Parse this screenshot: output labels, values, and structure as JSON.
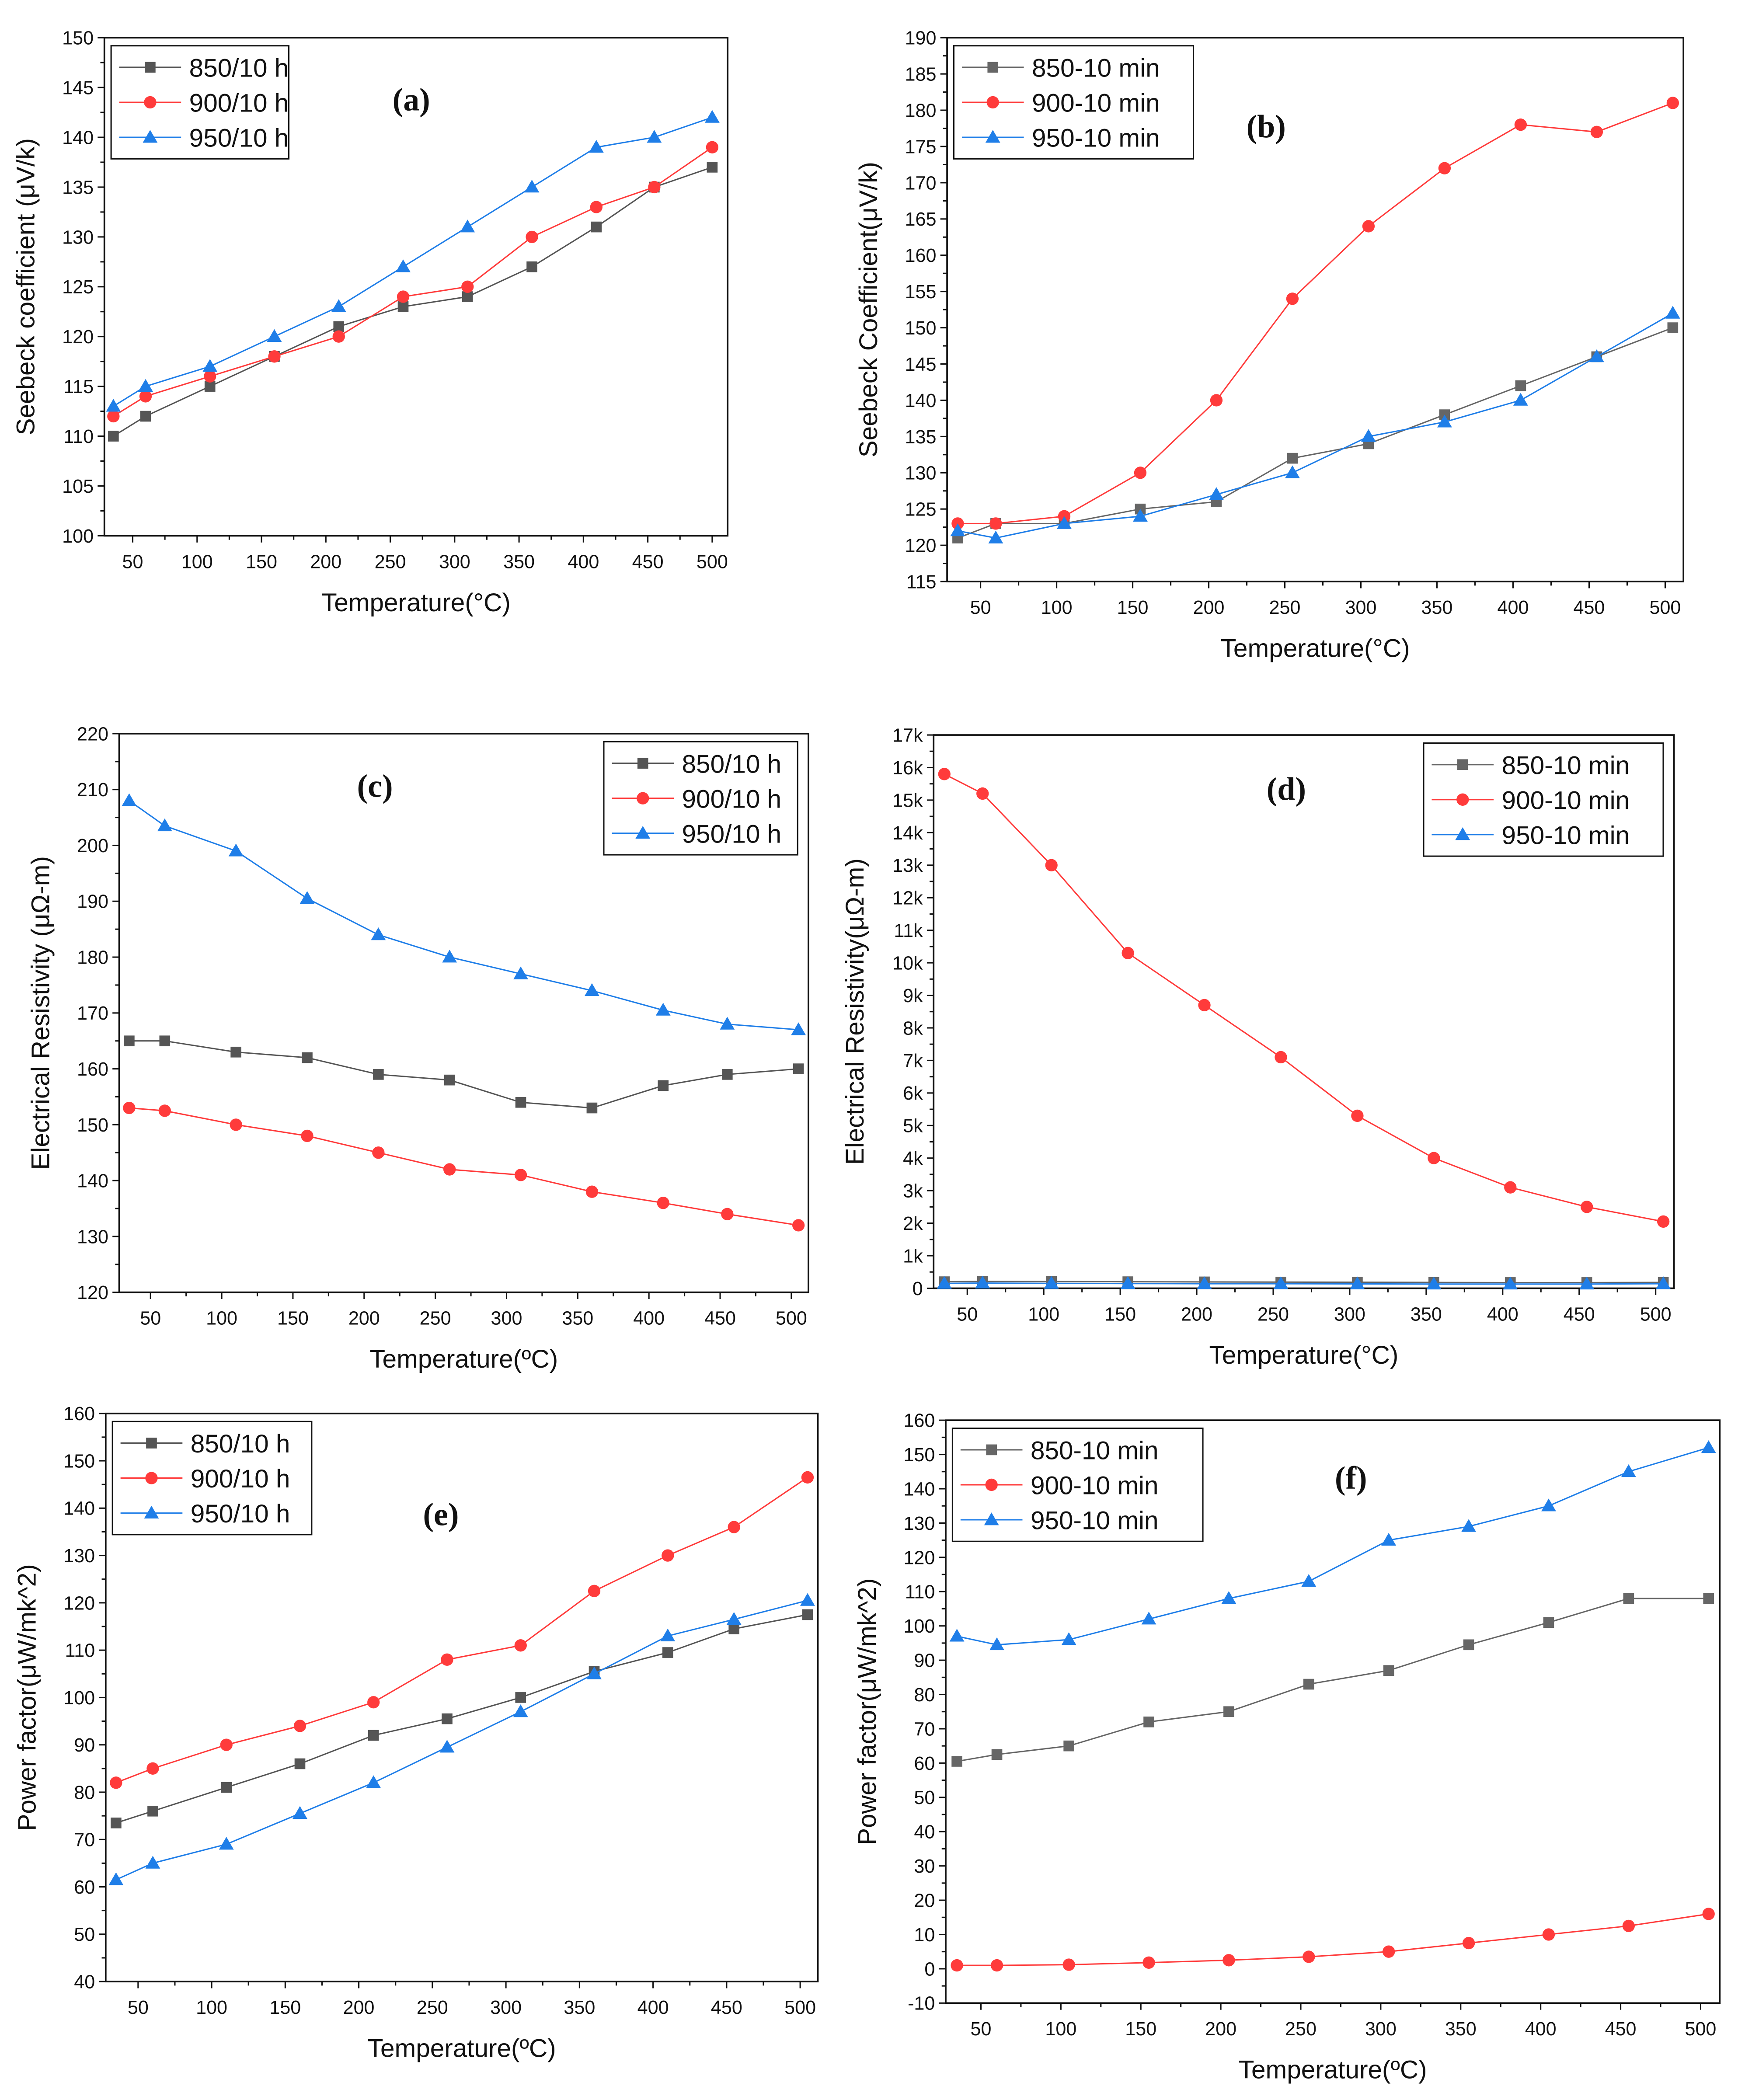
{
  "chart_data": [
    {
      "id": "a",
      "type": "line",
      "panel_label": "(a)",
      "xlabel": "Temperature(°C)",
      "ylabel": "Seebeck coefficient (μV/k)",
      "xlim": [
        28,
        512
      ],
      "xticks": [
        50,
        100,
        150,
        200,
        250,
        300,
        350,
        400,
        450,
        500
      ],
      "ylim": [
        100,
        150
      ],
      "ystep": 5,
      "legend": "top-left",
      "x": [
        35,
        60,
        110,
        160,
        210,
        260,
        310,
        360,
        410,
        455,
        500
      ],
      "series": [
        {
          "name": "850/10 h",
          "color": "#555555",
          "marker": "square",
          "values": [
            110,
            112,
            115,
            118,
            121,
            123,
            124,
            127,
            131,
            135,
            137
          ]
        },
        {
          "name": "900/10 h",
          "color": "#ff3b3b",
          "marker": "circle",
          "values": [
            112,
            114,
            116,
            118,
            120,
            124,
            125,
            130,
            133,
            135,
            139
          ]
        },
        {
          "name": "950/10 h",
          "color": "#1f7ee8",
          "marker": "triangle",
          "values": [
            113,
            115,
            117,
            120,
            123,
            127,
            131,
            135,
            139,
            140,
            142
          ]
        }
      ]
    },
    {
      "id": "b",
      "type": "line",
      "panel_label": "(b)",
      "xlabel": "Temperature(°C)",
      "ylabel": "Seebeck Coefficient(μV/k)",
      "xlim": [
        28,
        512
      ],
      "xticks": [
        50,
        100,
        150,
        200,
        250,
        300,
        350,
        400,
        450,
        500
      ],
      "ylim": [
        115,
        190
      ],
      "ystep": 5,
      "legend": "top-left",
      "x": [
        35,
        60,
        105,
        155,
        205,
        255,
        305,
        355,
        405,
        455,
        505
      ],
      "series": [
        {
          "name": "850-10 min",
          "color": "#666666",
          "marker": "square",
          "values": [
            121,
            123,
            123,
            125,
            126,
            132,
            134,
            138,
            142,
            146,
            150
          ]
        },
        {
          "name": "900-10 min",
          "color": "#ff3b3b",
          "marker": "circle",
          "values": [
            123,
            123,
            124,
            130,
            140,
            154,
            164,
            172,
            178,
            177,
            181
          ]
        },
        {
          "name": "950-10 min",
          "color": "#1f7ee8",
          "marker": "triangle",
          "values": [
            122,
            121,
            123,
            124,
            127,
            130,
            135,
            137,
            140,
            146,
            152
          ]
        }
      ]
    },
    {
      "id": "c",
      "type": "line",
      "panel_label": "(c)",
      "xlabel": "Temperature(ºC)",
      "ylabel": "Electrical Resistivity (μΩ-m)",
      "xlim": [
        28,
        512
      ],
      "xticks": [
        50,
        100,
        150,
        200,
        250,
        300,
        350,
        400,
        450,
        500
      ],
      "ylim": [
        120,
        220
      ],
      "ystep": 10,
      "legend": "top-right",
      "x": [
        35,
        60,
        110,
        160,
        210,
        260,
        310,
        360,
        410,
        455,
        505
      ],
      "series": [
        {
          "name": "850/10 h",
          "color": "#555555",
          "marker": "square",
          "values": [
            165,
            165,
            163,
            162,
            159,
            158,
            154,
            153,
            157,
            159,
            160
          ]
        },
        {
          "name": "900/10 h",
          "color": "#ff3b3b",
          "marker": "circle",
          "values": [
            153,
            152.5,
            150,
            148,
            145,
            142,
            141,
            138,
            136,
            134,
            132
          ]
        },
        {
          "name": "950/10 h",
          "color": "#1f7ee8",
          "marker": "triangle",
          "values": [
            208,
            203.5,
            199,
            190.5,
            184,
            180,
            177,
            174,
            170.5,
            168,
            167
          ]
        }
      ]
    },
    {
      "id": "d",
      "type": "line",
      "panel_label": "(d)",
      "xlabel": "Temperature(°C)",
      "ylabel": "Electrical Resistivity(μΩ-m)",
      "xlim": [
        28,
        512
      ],
      "xticks": [
        50,
        100,
        150,
        200,
        250,
        300,
        350,
        400,
        450,
        500
      ],
      "ylim": [
        0,
        17000
      ],
      "ystep": 1000,
      "legend": "top-right",
      "ytick_labels": [
        "0",
        "1k",
        "2k",
        "3k",
        "4k",
        "5k",
        "6k",
        "7k",
        "8k",
        "9k",
        "10k",
        "11k",
        "12k",
        "13k",
        "14k",
        "15k",
        "16k",
        "17k"
      ],
      "x": [
        35,
        60,
        105,
        155,
        205,
        255,
        305,
        355,
        405,
        455,
        505
      ],
      "series": [
        {
          "name": "850-10 min",
          "color": "#666666",
          "marker": "square",
          "values": [
            200,
            210,
            205,
            200,
            195,
            190,
            185,
            180,
            175,
            175,
            180
          ]
        },
        {
          "name": "900-10 min",
          "color": "#ff3b3b",
          "marker": "circle",
          "values": [
            15800,
            15200,
            13000,
            10300,
            8700,
            7100,
            5300,
            4000,
            3100,
            2500,
            2050
          ]
        },
        {
          "name": "950-10 min",
          "color": "#1f7ee8",
          "marker": "triangle",
          "values": [
            150,
            160,
            150,
            145,
            140,
            140,
            135,
            130,
            130,
            130,
            140
          ]
        }
      ]
    },
    {
      "id": "e",
      "type": "line",
      "panel_label": "(e)",
      "xlabel": "Temperature(ºC)",
      "ylabel": "Power factor(μW/mk^2)",
      "xlim": [
        28,
        512
      ],
      "xticks": [
        50,
        100,
        150,
        200,
        250,
        300,
        350,
        400,
        450,
        500
      ],
      "ylim": [
        40,
        160
      ],
      "ystep": 10,
      "legend": "top-left",
      "x": [
        35,
        60,
        110,
        160,
        210,
        260,
        310,
        360,
        410,
        455,
        505
      ],
      "series": [
        {
          "name": "850/10 h",
          "color": "#555555",
          "marker": "square",
          "values": [
            73.5,
            76,
            81,
            86,
            92,
            95.5,
            100,
            105.5,
            109.5,
            114.5,
            117.5
          ]
        },
        {
          "name": "900/10 h",
          "color": "#ff3b3b",
          "marker": "circle",
          "values": [
            82,
            85,
            90,
            94,
            99,
            108,
            111,
            122.5,
            130,
            136,
            146.5
          ]
        },
        {
          "name": "950/10 h",
          "color": "#1f7ee8",
          "marker": "triangle",
          "values": [
            61.5,
            65,
            69,
            75.5,
            82,
            89.5,
            97,
            105,
            113,
            116.5,
            120.5
          ]
        }
      ]
    },
    {
      "id": "f",
      "type": "line",
      "panel_label": "(f)",
      "xlabel": "Temperature(ºC)",
      "ylabel": "Power factor(μW/mk^2)",
      "xlim": [
        28,
        512
      ],
      "xticks": [
        50,
        100,
        150,
        200,
        250,
        300,
        350,
        400,
        450,
        500
      ],
      "ylim": [
        -10,
        160
      ],
      "ystep": 10,
      "legend": "top-left",
      "x": [
        35,
        60,
        105,
        155,
        205,
        255,
        305,
        355,
        405,
        455,
        505
      ],
      "series": [
        {
          "name": "850-10 min",
          "color": "#666666",
          "marker": "square",
          "values": [
            60.5,
            62.5,
            65,
            72,
            75,
            83,
            87,
            94.5,
            101,
            108,
            108
          ]
        },
        {
          "name": "900-10 min",
          "color": "#ff3b3b",
          "marker": "circle",
          "values": [
            1,
            1,
            1.2,
            1.8,
            2.5,
            3.5,
            5,
            7.5,
            10,
            12.5,
            16
          ]
        },
        {
          "name": "950-10 min",
          "color": "#1f7ee8",
          "marker": "triangle",
          "values": [
            97,
            94.5,
            96,
            102,
            108,
            113,
            125,
            129,
            135,
            145,
            152
          ]
        }
      ]
    }
  ]
}
